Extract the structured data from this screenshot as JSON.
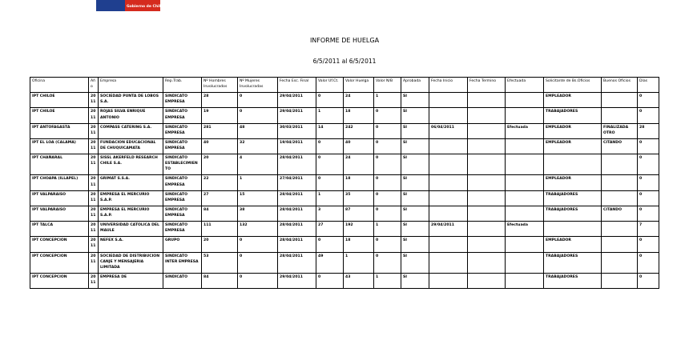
{
  "header": {
    "logo_text": "Gobierno de Chile",
    "title": "INFORME DE HUELGA",
    "subtitle": "6/5/2011 al 6/5/2011"
  },
  "table": {
    "columns": [
      "Oficina",
      "Año",
      "Empresa",
      "Rep.Trab.",
      "Nº Hombres Involucrados",
      "Nº Mujeres Involucradas",
      "Fecha Esc. Final",
      "Valor Uf.Ct.",
      "Valor Huelga",
      "Valor N/B",
      "Aprobada",
      "Fecha Inicio",
      "Fecha Termino",
      "Efectuada",
      "Solicitante de Bs.Oficios",
      "Buenos Oficios",
      "Días"
    ],
    "rows": [
      [
        "IPT CHILOE",
        2011,
        "SOCIEDAD PUNTA DE LOBOS S.A.",
        "SINDICATO EMPRESA",
        28,
        0,
        "29/04/2011",
        0,
        24,
        1,
        "SI",
        null,
        null,
        null,
        "EMPLEADOR",
        null,
        0
      ],
      [
        "IPT CHILOE",
        2011,
        "ROJAS SILVA ENRIQUE ANTONIO",
        "SINDICATO EMPRESA",
        19,
        0,
        "29/04/2011",
        1,
        18,
        0,
        "SI",
        null,
        null,
        null,
        "TRABAJADORES",
        null,
        0
      ],
      [
        "IPT ANTOFAGASTA",
        2011,
        "COMPASS CATERING S.A.",
        "SINDICATO EMPRESA",
        281,
        48,
        "30/03/2011",
        14,
        242,
        0,
        "SI",
        "06/04/2011",
        null,
        "Efectuada",
        "EMPLEADOR",
        "FINALIZADA OTRO",
        28
      ],
      [
        "IPT EL LOA (CALAMA)",
        2011,
        "FUNDACION EDUCACIONAL DE CHUQUICAMATA",
        "SINDICATO EMPRESA",
        40,
        32,
        "19/04/2011",
        0,
        40,
        0,
        "SI",
        null,
        null,
        null,
        "EMPLEADOR",
        "CITANDO",
        0
      ],
      [
        "IPT CHAÑARAL",
        2011,
        "SISSL AKERFELD RESEARCH CHILE S.A.",
        "SINDICATO ESTABLECIMIENTO",
        20,
        4,
        "28/04/2011",
        0,
        24,
        0,
        "SI",
        null,
        null,
        null,
        null,
        null,
        0
      ],
      [
        "IPT CHOAPA (ILLAPEL)",
        2011,
        "GRIMAT S.S.A.",
        "SINDICATO EMPRESA",
        22,
        1,
        "27/04/2011",
        0,
        18,
        0,
        "SI",
        null,
        null,
        null,
        "EMPLEADOR",
        null,
        0
      ],
      [
        "IPT VALPARAISO",
        2011,
        "EMPRESA EL MERCURIO S.A.P.",
        "SINDICATO EMPRESA",
        27,
        15,
        "28/04/2011",
        1,
        35,
        0,
        "SI",
        null,
        null,
        null,
        "TRABAJADORES",
        null,
        0
      ],
      [
        "IPT VALPARAISO",
        2011,
        "EMPRESA EL MERCURIO S.A.P.",
        "SINDICATO EMPRESA",
        84,
        38,
        "28/04/2011",
        3,
        87,
        0,
        "SI",
        null,
        null,
        null,
        "TRABAJADORES",
        "CITANDO",
        0
      ],
      [
        "IPT TALCA",
        2011,
        "UNIVERSIDAD CATOLICA DEL MAULE",
        "SINDICATO EMPRESA",
        111,
        132,
        "28/04/2011",
        27,
        192,
        1,
        "SI",
        "29/04/2011",
        null,
        "Efectuada",
        null,
        null,
        7
      ],
      [
        "IPT CONCEPCION",
        2011,
        "NEFEX S.A.",
        "GRUPO",
        20,
        0,
        "28/04/2011",
        0,
        18,
        0,
        "SI",
        null,
        null,
        null,
        "EMPLEADOR",
        null,
        0
      ],
      [
        "IPT CONCEPCION",
        2011,
        "SOCIEDAD DE DISTRIBUCION CANJE Y MENSAJERIA LIMITADA",
        "SINDICATO INTER EMPRESA",
        53,
        0,
        "28/04/2011",
        49,
        1,
        0,
        "SI",
        null,
        null,
        null,
        "TRABAJADORES",
        null,
        0
      ],
      [
        "IPT CONCEPCION",
        2011,
        "EMPRESA DE",
        "SINDICATO",
        84,
        0,
        "29/04/2011",
        0,
        43,
        1,
        "SI",
        null,
        null,
        null,
        "TRABAJADORES",
        null,
        0
      ]
    ]
  }
}
